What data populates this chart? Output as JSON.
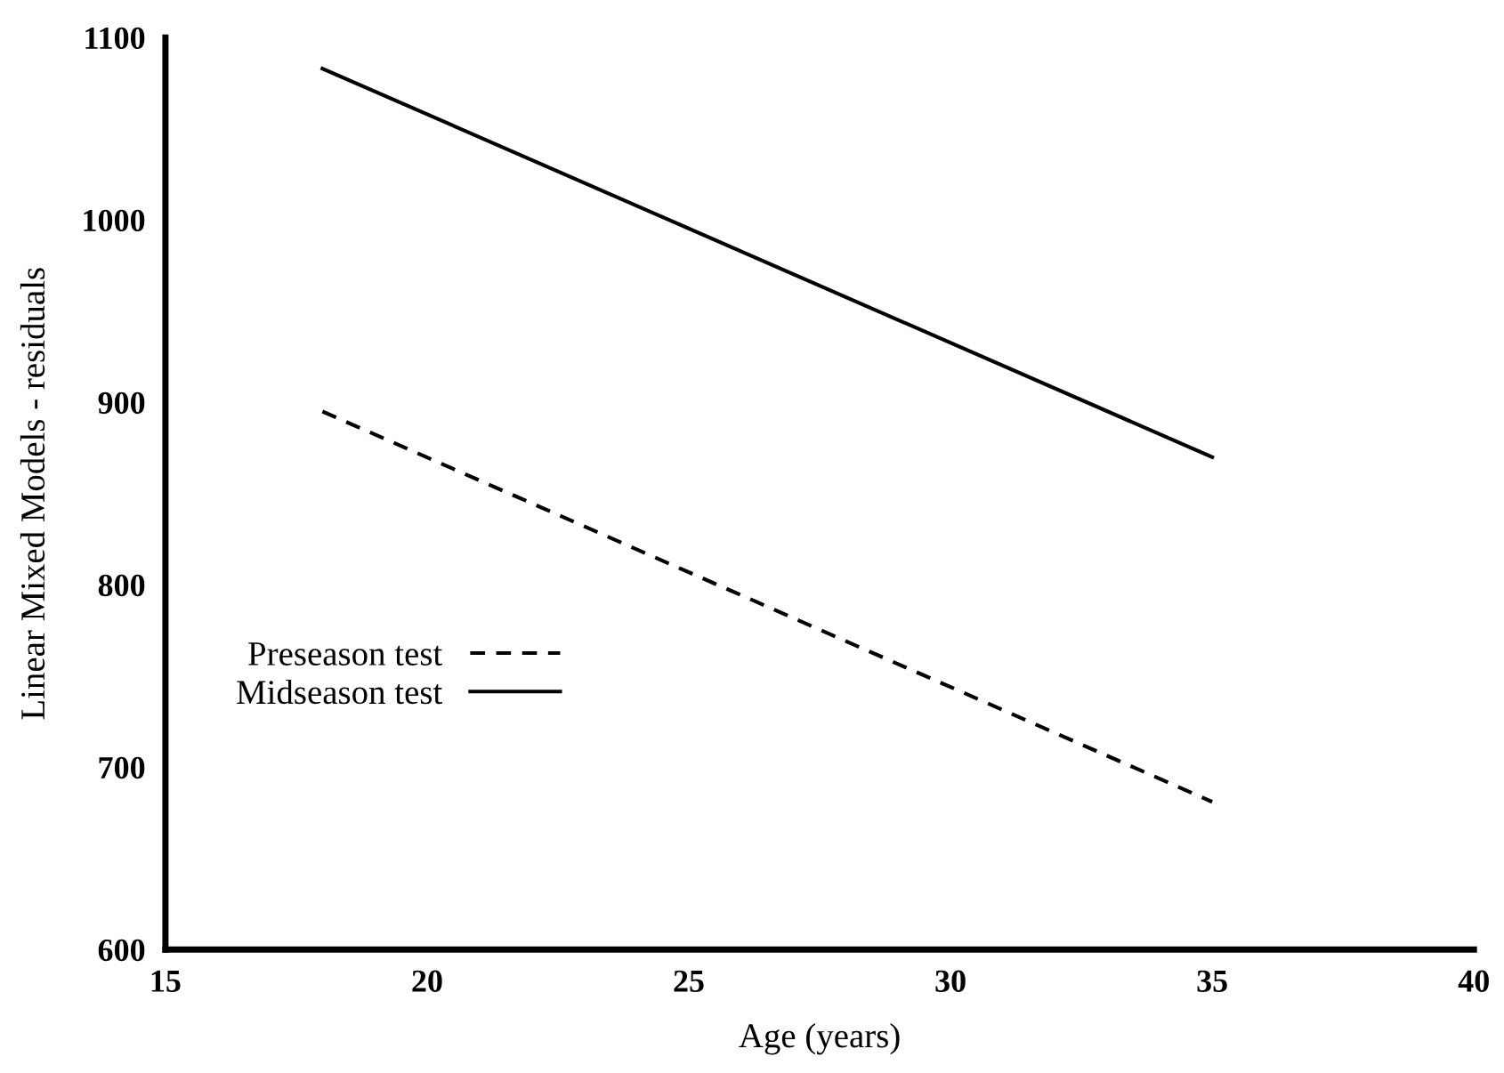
{
  "chart_data": {
    "type": "line",
    "xlabel": "Age (years)",
    "ylabel": "Linear Mixed Models - residuals",
    "xlim": [
      15,
      40
    ],
    "xticks": [
      15,
      20,
      25,
      30,
      35,
      40
    ],
    "ylim": [
      600,
      1100
    ],
    "yticks": [
      600,
      700,
      800,
      900,
      1000,
      1100
    ],
    "grid": false,
    "legend": "left",
    "x": [
      18,
      35
    ],
    "series": [
      {
        "name": "Preseason test",
        "color": "#000000",
        "line_style": "dashed",
        "values": [
          895,
          681
        ]
      },
      {
        "name": "Midseason test",
        "color": "#000000",
        "line_style": "solid",
        "values": [
          1083,
          870
        ]
      }
    ]
  }
}
